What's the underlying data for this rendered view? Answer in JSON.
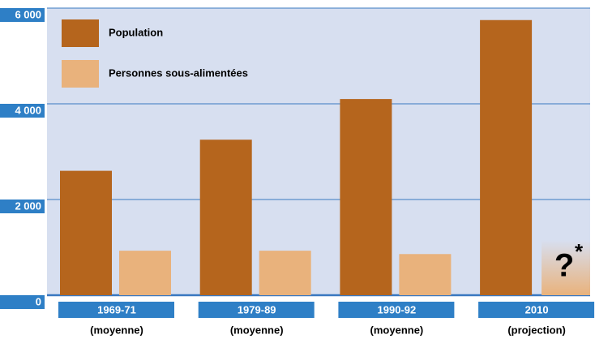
{
  "chart_data": {
    "type": "bar",
    "categories": [
      "1969-71",
      "1979-89",
      "1990-92",
      "2010"
    ],
    "sublabels": [
      "(moyenne)",
      "(moyenne)",
      "(moyenne)",
      "(projection)"
    ],
    "series": [
      {
        "name": "Population",
        "color": "#b5651d",
        "values": [
          2600,
          3250,
          4100,
          5750
        ]
      },
      {
        "name": "Personnes sous-alimentées",
        "color": "#e9b27c",
        "values": [
          930,
          930,
          860,
          null
        ]
      }
    ],
    "annotation": "?",
    "annotation_mark": "*",
    "ylim": [
      0,
      6000
    ],
    "yticks": [
      0,
      {
        "value": 2000,
        "label": "2 000"
      },
      {
        "value": 4000,
        "label": "4 000"
      },
      {
        "value": 6000,
        "label": "6 000"
      }
    ],
    "grid": true,
    "legend": "top-left",
    "background": "#d7dff0",
    "label_color": "#2e7fc6"
  }
}
